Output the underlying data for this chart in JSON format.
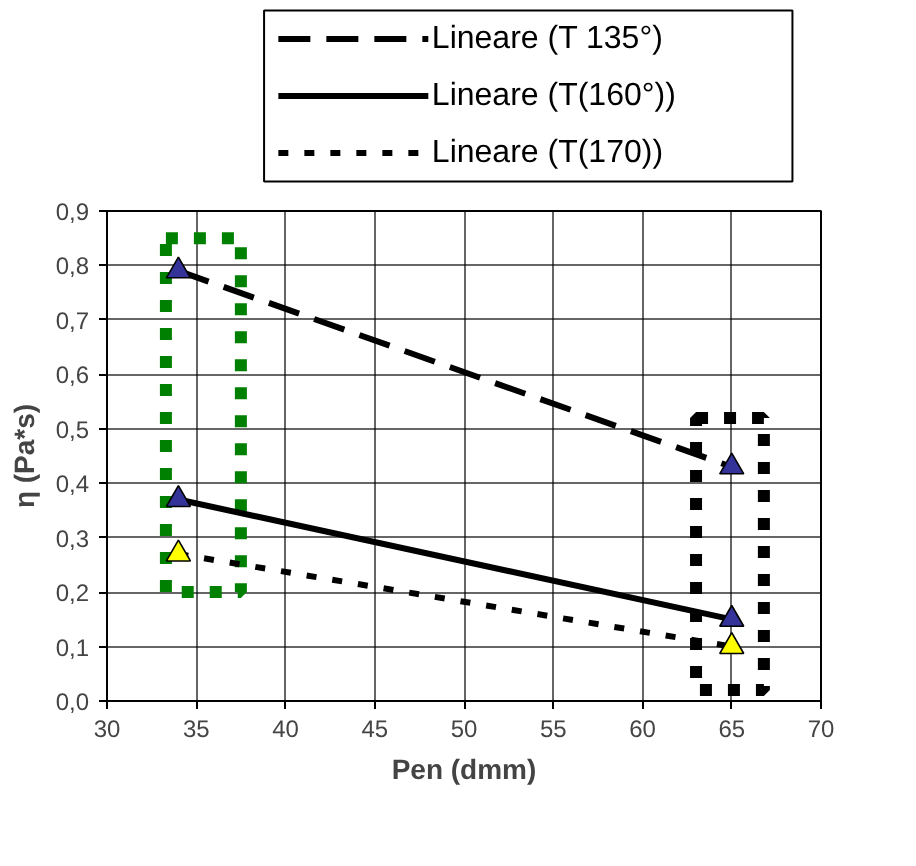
{
  "chart_data": {
    "type": "line",
    "xlabel": "Pen (dmm)",
    "ylabel": "η (Pa*s)",
    "xlim": [
      30,
      70
    ],
    "xticks": [
      30,
      35,
      40,
      45,
      50,
      55,
      60,
      65,
      70
    ],
    "ylim": [
      0,
      0.9
    ],
    "yticks": [
      {
        "value": 0,
        "label": "0,0"
      },
      {
        "value": 0.1,
        "label": "0,1"
      },
      {
        "value": 0.2,
        "label": "0,2"
      },
      {
        "value": 0.3,
        "label": "0,3"
      },
      {
        "value": 0.4,
        "label": "0,4"
      },
      {
        "value": 0.5,
        "label": "0,5"
      },
      {
        "value": 0.6,
        "label": "0,6"
      },
      {
        "value": 0.7,
        "label": "0,7"
      },
      {
        "value": 0.8,
        "label": "0,8"
      },
      {
        "value": 0.9,
        "label": "0,9"
      }
    ],
    "grid": true,
    "legend": "top",
    "x": [
      34,
      65
    ],
    "series": [
      {
        "name": "Lineare (T 135°)",
        "color": "#000000",
        "values": [
          0.79,
          0.43
        ],
        "line_style": "dashed",
        "marker": "none"
      },
      {
        "name": "Lineare (T(160°))",
        "color": "#000000",
        "values": [
          0.37,
          0.15
        ],
        "line_style": "solid",
        "marker": "none"
      },
      {
        "name": "Lineare (T(170))",
        "color": "#000000",
        "values": [
          0.27,
          0.1
        ],
        "line_style": "dotted",
        "marker": "none"
      },
      {
        "type": "scatter",
        "color": "#333399",
        "values": [
          0.79,
          0.43
        ],
        "marker": "triangle"
      },
      {
        "type": "scatter",
        "color": "#333399",
        "values": [
          0.37,
          0.15
        ],
        "marker": "triangle"
      },
      {
        "type": "scatter",
        "color": "#ffff00",
        "values": [
          0.27,
          0.1
        ],
        "marker": "triangle"
      }
    ]
  }
}
